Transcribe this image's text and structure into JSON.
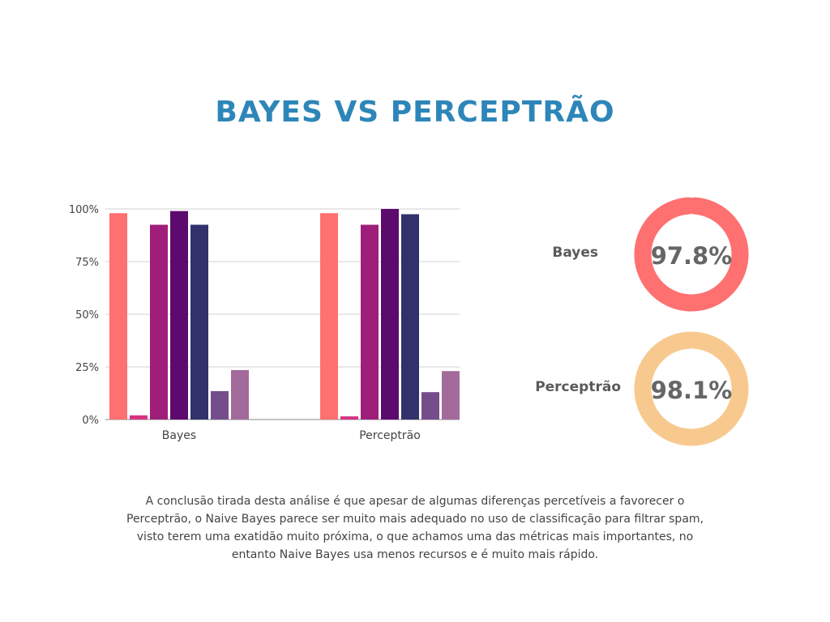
{
  "title": "BAYES VS PERCEPTRÃO",
  "chart_data": [
    {
      "type": "bar",
      "categories": [
        "Bayes",
        "Perceptrão"
      ],
      "series": [
        {
          "values": [
            98,
            98
          ],
          "color": "#ff7070"
        },
        {
          "values": [
            2,
            1.5
          ],
          "color": "#d63384"
        },
        {
          "values": [
            92.5,
            92.5
          ],
          "color": "#9e1e7a"
        },
        {
          "values": [
            99,
            100
          ],
          "color": "#5c0a6e"
        },
        {
          "values": [
            92.5,
            97.5
          ],
          "color": "#31316b"
        },
        {
          "values": [
            13.5,
            13
          ],
          "color": "#744d8a"
        },
        {
          "values": [
            23.5,
            23
          ],
          "color": "#a26b9b"
        }
      ],
      "y_ticks": [
        "100%",
        "75%",
        "50%",
        "25%",
        "0%"
      ],
      "ylim": [
        0,
        100
      ],
      "grid": true,
      "legend": "none"
    },
    {
      "type": "pie",
      "style": "donut",
      "items": [
        {
          "label": "Bayes",
          "value": 97.8,
          "value_label": "97.8%",
          "color": "#ff7070",
          "track_color": "#eeeeee"
        },
        {
          "label": "Perceptrão",
          "value": 98.1,
          "value_label": "98.1%",
          "color": "#f8c98e",
          "track_color": "#eeeeee"
        }
      ]
    }
  ],
  "conclusion": "A conclusão tirada desta análise é que apesar de algumas diferenças percetíveis a favorecer o Perceptrão, o Naive Bayes parece ser muito mais adequado no uso de classificação para filtrar spam, visto terem uma exatidão muito próxima, o que achamos uma das métricas mais importantes, no entanto Naive Bayes usa menos recursos e é muito mais rápido."
}
